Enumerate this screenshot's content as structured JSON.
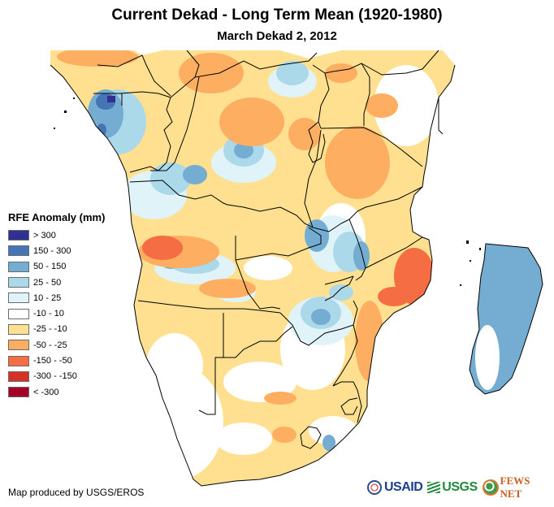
{
  "header": {
    "title": "Current Dekad - Long Term Mean (1920-1980)",
    "subtitle": "March Dekad 2, 2012"
  },
  "legend": {
    "title": "RFE Anomaly (mm)",
    "items": [
      {
        "label": "> 300",
        "color": "#2e3192"
      },
      {
        "label": "150 - 300",
        "color": "#4575b4"
      },
      {
        "label": "50 - 150",
        "color": "#74add1"
      },
      {
        "label": "25 - 50",
        "color": "#abd9e9"
      },
      {
        "label": "10 - 25",
        "color": "#e0f3f8"
      },
      {
        "label": "-10 - 10",
        "color": "#ffffff"
      },
      {
        "label": "-25 - -10",
        "color": "#fee090"
      },
      {
        "label": "-50 - -25",
        "color": "#fdae61"
      },
      {
        "label": "-150 - -50",
        "color": "#f46d43"
      },
      {
        "label": "-300 - -150",
        "color": "#d73027"
      },
      {
        "label": "< -300",
        "color": "#a50026"
      }
    ]
  },
  "map": {
    "region": "Southern and Central Africa with Madagascar",
    "variable": "Rainfall Estimate (RFE) anomaly"
  },
  "footer": {
    "credit": "Map produced by USGS/EROS",
    "logos": [
      {
        "name": "USAID",
        "text": "USAID"
      },
      {
        "name": "USGS",
        "text": "USGS"
      },
      {
        "name": "FEWS NET",
        "text": "FEWS NET"
      }
    ]
  }
}
